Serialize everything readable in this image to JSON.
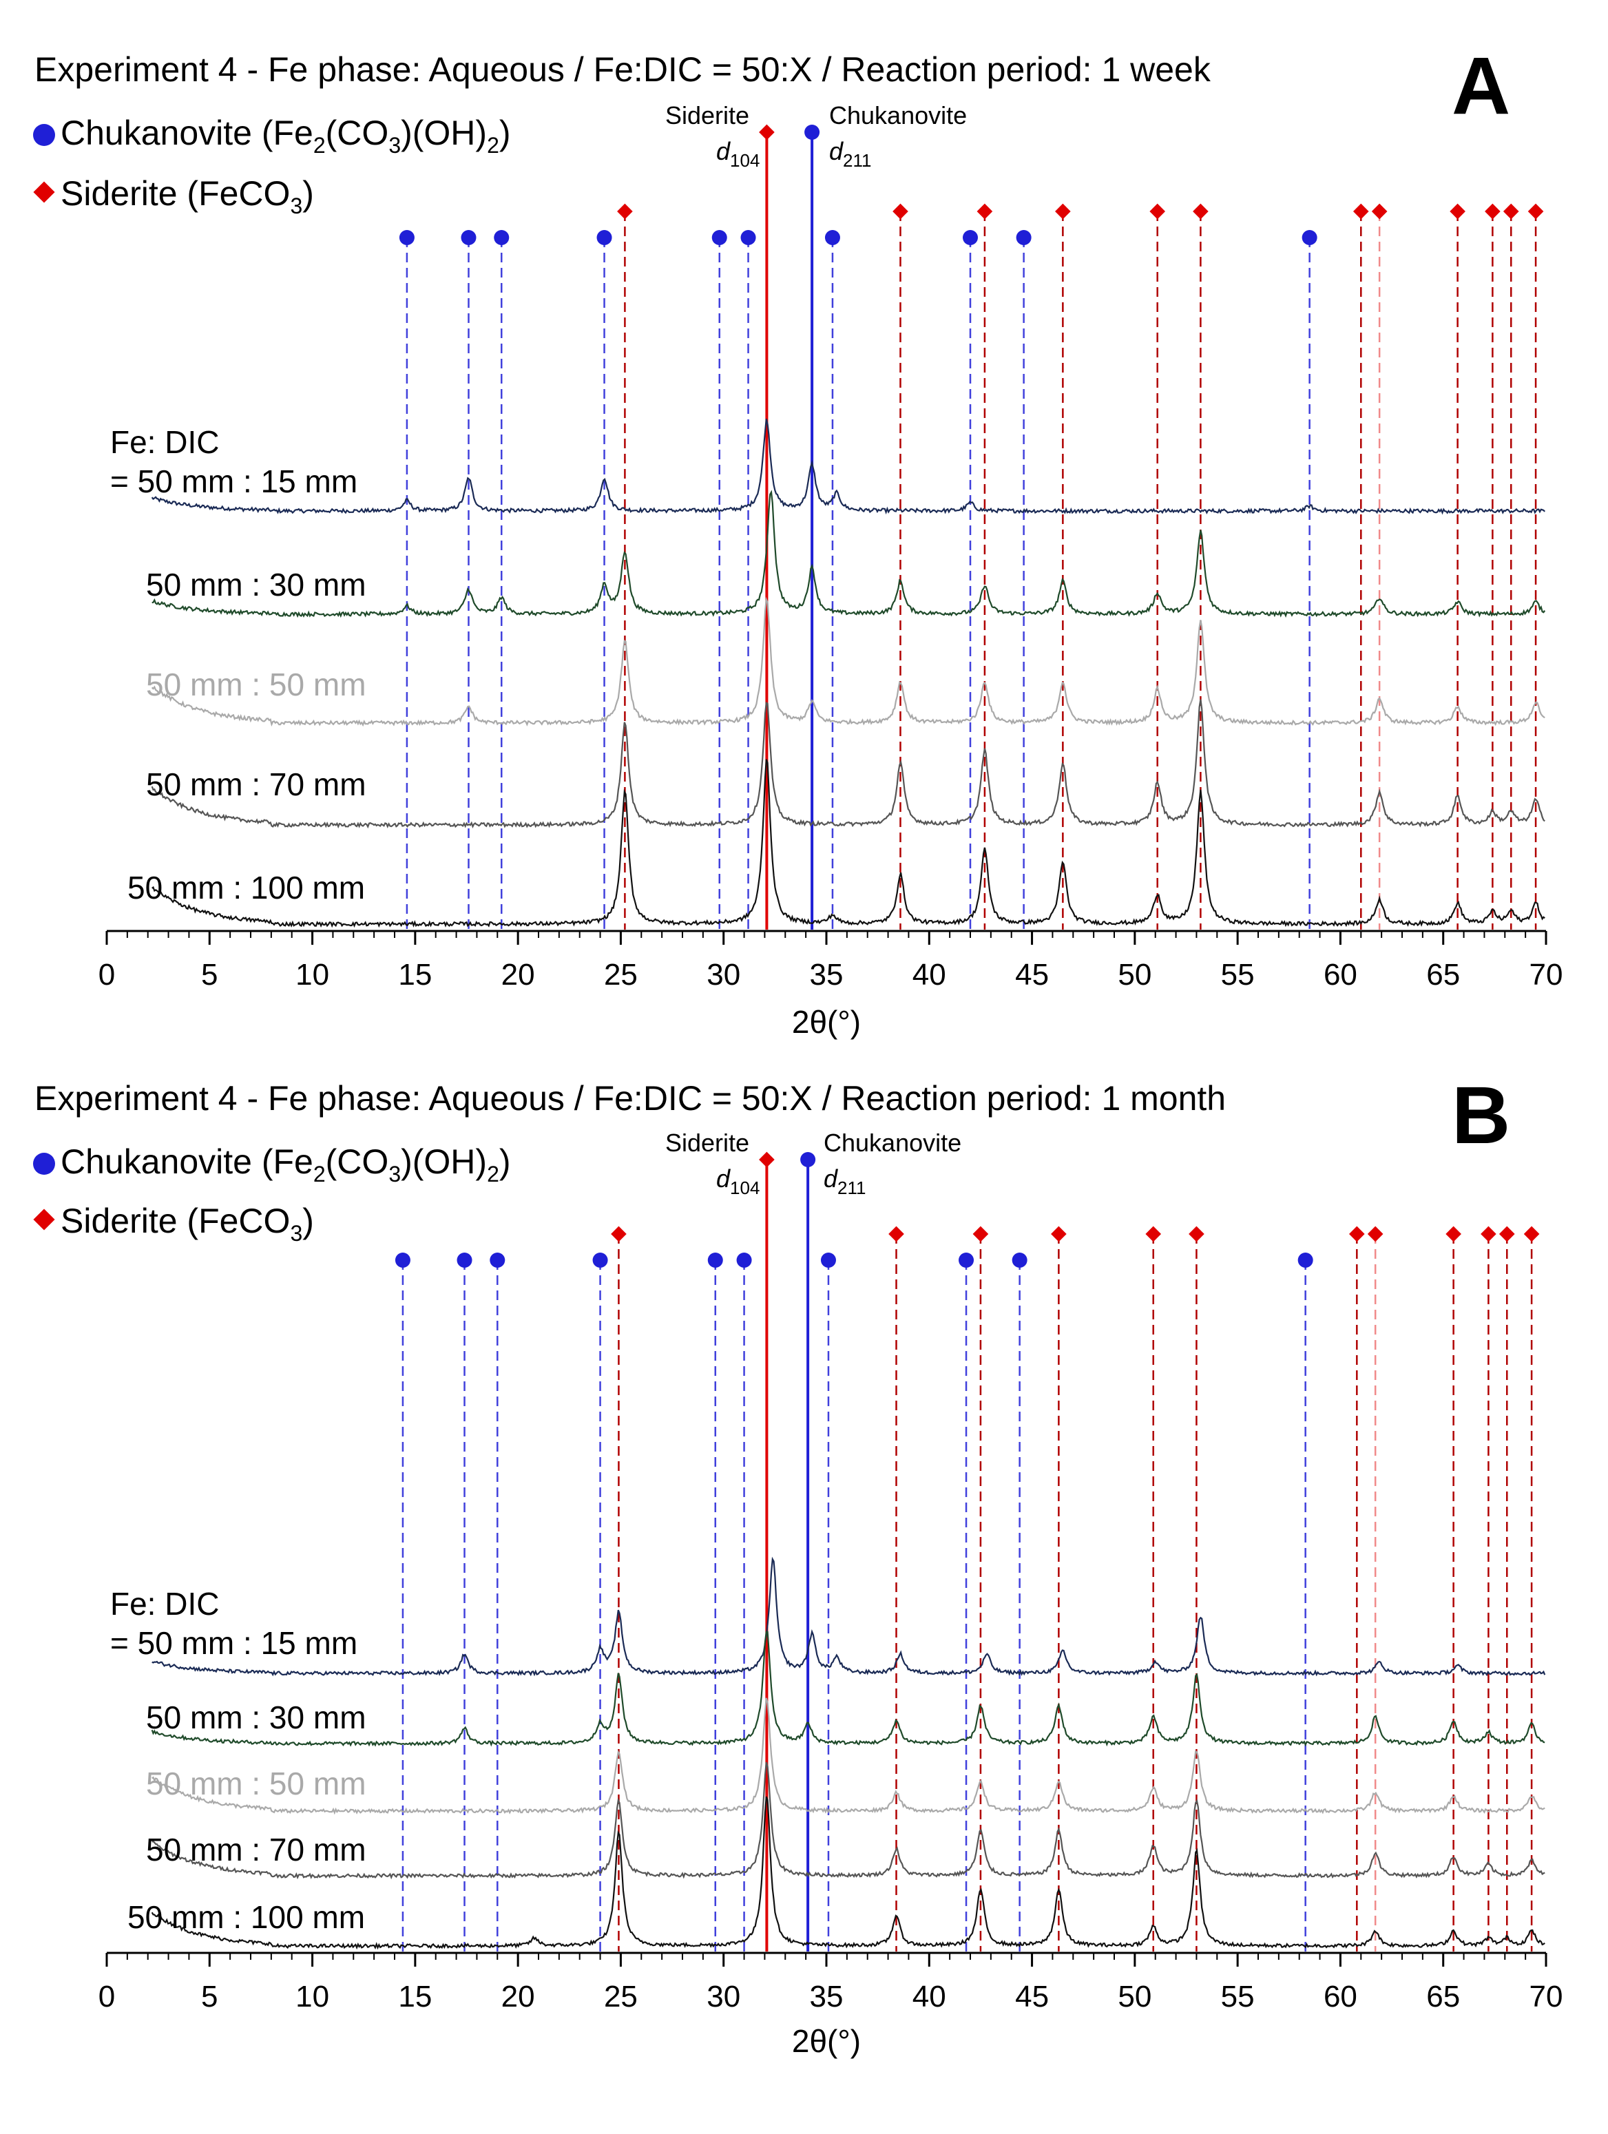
{
  "colors": {
    "chukanovite": "#1f1fd6",
    "siderite": "#e00000",
    "siderite_line_light": "#f08a8a",
    "siderite_line_dark": "#b00000",
    "series": [
      "#1a2a55",
      "#1f4a2a",
      "#a9a9a9",
      "#555555",
      "#111111"
    ],
    "label_colors": [
      "#000000",
      "#000000",
      "#a9a9a9",
      "#000000",
      "#000000"
    ]
  },
  "chart_data": [
    {
      "type": "line",
      "panel": "A",
      "title": "Experiment 4 - Fe phase: Aqueous / Fe:DIC = 50:X / Reaction period: 1 week",
      "xlabel": "2θ(°)",
      "ylabel": "",
      "xlim": [
        0,
        70
      ],
      "xticks": [
        "0",
        "5",
        "10",
        "15",
        "20",
        "25",
        "30",
        "35",
        "40",
        "45",
        "50",
        "55",
        "60",
        "65",
        "70"
      ],
      "legend": [
        {
          "marker": "circle",
          "pre": "Chukanovite (Fe",
          "sub1": "2",
          "mid": "(CO",
          "sub2": "3",
          "mid2": ")(OH)",
          "sub3": "2",
          "post": ")"
        },
        {
          "marker": "diamond",
          "pre": "Siderite (FeCO",
          "sub1": "3",
          "post": ")"
        }
      ],
      "annotations": {
        "siderite": {
          "name": "Siderite",
          "d": "d",
          "sub": "104",
          "x": 32.1
        },
        "chukanovite": {
          "name": "Chukanovite",
          "d": "d",
          "sub": "211",
          "x": 34.3
        }
      },
      "reference_lines": {
        "chukanovite": [
          14.6,
          17.6,
          19.2,
          24.2,
          29.8,
          31.2,
          35.3,
          42.0,
          44.6,
          58.5
        ],
        "siderite": [
          25.2,
          38.6,
          42.7,
          46.5,
          51.1,
          53.2,
          61.0,
          61.9,
          65.7,
          67.4,
          68.3,
          69.5
        ]
      },
      "series": [
        {
          "name": "Fe: DIC = 50 mm : 15 mm",
          "label_line1": "Fe: DIC",
          "label_line2": "= 50 mm : 15 mm",
          "start": 2.2,
          "peaks": [
            [
              14.6,
              0.25
            ],
            [
              17.6,
              0.8
            ],
            [
              24.2,
              0.8
            ],
            [
              32.1,
              2.2
            ],
            [
              34.3,
              1.1
            ],
            [
              35.5,
              0.4
            ],
            [
              42.0,
              0.2
            ],
            [
              58.5,
              0.12
            ]
          ]
        },
        {
          "name": "50 mm : 30 mm",
          "label_line1": "50 mm : 30 mm",
          "start": 2.2,
          "peaks": [
            [
              14.6,
              0.2
            ],
            [
              17.6,
              0.6
            ],
            [
              19.2,
              0.4
            ],
            [
              24.2,
              0.7
            ],
            [
              25.2,
              1.5
            ],
            [
              32.3,
              3.0
            ],
            [
              34.3,
              1.1
            ],
            [
              38.6,
              0.8
            ],
            [
              42.7,
              0.7
            ],
            [
              46.5,
              0.8
            ],
            [
              51.1,
              0.5
            ],
            [
              53.2,
              2.0
            ],
            [
              61.9,
              0.4
            ],
            [
              65.7,
              0.3
            ],
            [
              69.5,
              0.3
            ]
          ]
        },
        {
          "name": "50 mm : 50 mm",
          "label_line1": "50 mm : 50 mm",
          "start": 2.2,
          "peaks": [
            [
              17.6,
              0.4
            ],
            [
              25.2,
              2.0
            ],
            [
              32.1,
              3.0
            ],
            [
              34.3,
              0.5
            ],
            [
              38.6,
              1.0
            ],
            [
              42.7,
              1.0
            ],
            [
              46.5,
              1.0
            ],
            [
              51.1,
              0.8
            ],
            [
              53.2,
              2.5
            ],
            [
              61.9,
              0.6
            ],
            [
              65.7,
              0.4
            ],
            [
              69.5,
              0.5
            ]
          ]
        },
        {
          "name": "50 mm : 70 mm",
          "label_line1": "50 mm : 70 mm",
          "start": 2.2,
          "peaks": [
            [
              25.2,
              2.5
            ],
            [
              32.1,
              3.0
            ],
            [
              38.6,
              1.5
            ],
            [
              42.7,
              1.8
            ],
            [
              46.5,
              1.5
            ],
            [
              51.1,
              1.0
            ],
            [
              53.2,
              3.0
            ],
            [
              61.9,
              0.8
            ],
            [
              65.7,
              0.7
            ],
            [
              67.4,
              0.3
            ],
            [
              68.3,
              0.3
            ],
            [
              69.5,
              0.6
            ]
          ]
        },
        {
          "name": "50 mm : 100 mm",
          "label_line1": "50 mm : 100 mm",
          "start": 2.2,
          "peaks": [
            [
              25.2,
              3.2
            ],
            [
              32.1,
              4.0
            ],
            [
              35.3,
              0.2
            ],
            [
              38.6,
              1.2
            ],
            [
              42.7,
              1.8
            ],
            [
              46.5,
              1.5
            ],
            [
              51.1,
              0.7
            ],
            [
              53.2,
              3.2
            ],
            [
              61.9,
              0.6
            ],
            [
              65.7,
              0.5
            ],
            [
              67.4,
              0.3
            ],
            [
              68.3,
              0.3
            ],
            [
              69.5,
              0.5
            ]
          ]
        }
      ]
    },
    {
      "type": "line",
      "panel": "B",
      "title": "Experiment 4 - Fe phase: Aqueous / Fe:DIC = 50:X / Reaction period: 1 month",
      "xlabel": "2θ(°)",
      "ylabel": "",
      "xlim": [
        0,
        70
      ],
      "xticks": [
        "0",
        "5",
        "10",
        "15",
        "20",
        "25",
        "30",
        "35",
        "40",
        "45",
        "50",
        "55",
        "60",
        "65",
        "70"
      ],
      "legend": [
        {
          "marker": "circle",
          "pre": "Chukanovite (Fe",
          "sub1": "2",
          "mid": "(CO",
          "sub2": "3",
          "mid2": ")(OH)",
          "sub3": "2",
          "post": ")"
        },
        {
          "marker": "diamond",
          "pre": "Siderite (FeCO",
          "sub1": "3",
          "post": ")"
        }
      ],
      "annotations": {
        "siderite": {
          "name": "Siderite",
          "d": "d",
          "sub": "104",
          "x": 32.1
        },
        "chukanovite": {
          "name": "Chukanovite",
          "d": "d",
          "sub": "211",
          "x": 34.1
        }
      },
      "reference_lines": {
        "chukanovite": [
          14.4,
          17.4,
          19.0,
          24.0,
          29.6,
          31.0,
          35.1,
          41.8,
          44.4,
          58.3
        ],
        "siderite": [
          24.9,
          38.4,
          42.5,
          46.3,
          50.9,
          53.0,
          60.8,
          61.7,
          65.5,
          67.2,
          68.1,
          69.3
        ]
      },
      "series": [
        {
          "name": "Fe: DIC = 50 mm : 15 mm",
          "label_line1": "Fe: DIC",
          "label_line2": "= 50 mm : 15 mm",
          "start": 2.2,
          "peaks": [
            [
              17.4,
              0.5
            ],
            [
              24.0,
              0.6
            ],
            [
              24.9,
              1.6
            ],
            [
              32.4,
              3.0
            ],
            [
              34.3,
              1.0
            ],
            [
              35.5,
              0.4
            ],
            [
              38.6,
              0.5
            ],
            [
              42.8,
              0.5
            ],
            [
              46.5,
              0.6
            ],
            [
              51.0,
              0.3
            ],
            [
              53.2,
              1.5
            ],
            [
              61.9,
              0.3
            ],
            [
              65.7,
              0.2
            ]
          ]
        },
        {
          "name": "50 mm : 30 mm",
          "label_line1": "50 mm : 30 mm",
          "start": 2.2,
          "peaks": [
            [
              17.4,
              0.4
            ],
            [
              24.0,
              0.5
            ],
            [
              24.9,
              1.8
            ],
            [
              32.1,
              3.0
            ],
            [
              34.1,
              0.5
            ],
            [
              38.4,
              0.6
            ],
            [
              42.5,
              1.0
            ],
            [
              46.3,
              1.0
            ],
            [
              50.9,
              0.7
            ],
            [
              53.0,
              1.8
            ],
            [
              61.7,
              0.7
            ],
            [
              65.5,
              0.6
            ],
            [
              67.2,
              0.3
            ],
            [
              69.3,
              0.5
            ]
          ]
        },
        {
          "name": "50 mm : 50 mm",
          "label_line1": "50 mm : 50 mm",
          "start": 2.2,
          "peaks": [
            [
              24.9,
              1.6
            ],
            [
              32.1,
              3.0
            ],
            [
              38.4,
              0.5
            ],
            [
              42.5,
              0.8
            ],
            [
              46.3,
              0.8
            ],
            [
              50.9,
              0.6
            ],
            [
              53.0,
              1.6
            ],
            [
              61.7,
              0.5
            ],
            [
              65.5,
              0.4
            ],
            [
              69.3,
              0.4
            ]
          ]
        },
        {
          "name": "50 mm : 70 mm",
          "label_line1": "50 mm : 70 mm",
          "start": 2.2,
          "peaks": [
            [
              24.9,
              2.0
            ],
            [
              32.1,
              3.0
            ],
            [
              38.4,
              0.7
            ],
            [
              42.5,
              1.2
            ],
            [
              46.3,
              1.2
            ],
            [
              50.9,
              0.8
            ],
            [
              53.0,
              2.0
            ],
            [
              61.7,
              0.6
            ],
            [
              65.5,
              0.5
            ],
            [
              67.2,
              0.3
            ],
            [
              69.3,
              0.4
            ]
          ]
        },
        {
          "name": "50 mm : 100 mm",
          "label_line1": "50 mm : 100 mm",
          "start": 2.2,
          "peaks": [
            [
              20.8,
              0.2
            ],
            [
              24.9,
              3.0
            ],
            [
              32.1,
              4.0
            ],
            [
              38.4,
              0.8
            ],
            [
              42.5,
              1.5
            ],
            [
              46.3,
              1.5
            ],
            [
              50.9,
              0.5
            ],
            [
              53.0,
              2.5
            ],
            [
              61.7,
              0.4
            ],
            [
              65.5,
              0.4
            ],
            [
              67.2,
              0.2
            ],
            [
              68.1,
              0.2
            ],
            [
              69.3,
              0.4
            ]
          ]
        }
      ]
    }
  ]
}
